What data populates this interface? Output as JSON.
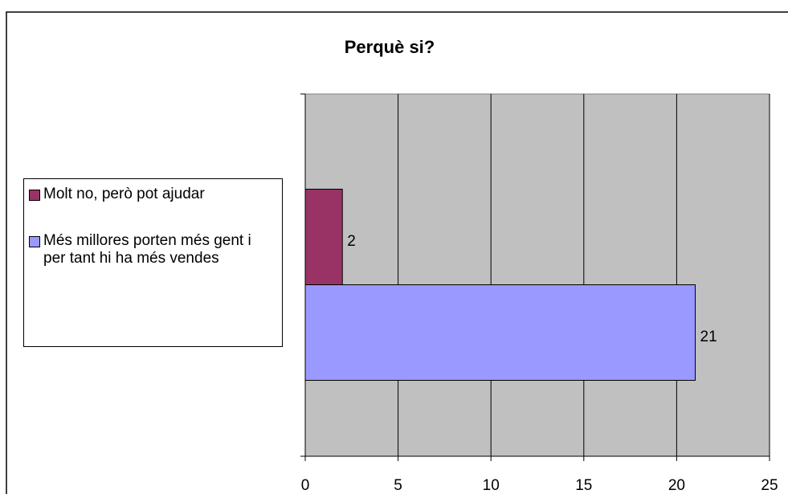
{
  "chart_data": {
    "type": "bar",
    "orientation": "horizontal",
    "title": "Perquè si?",
    "categories": [
      null
    ],
    "series": [
      {
        "name": "Molt no, però pot ajudar",
        "color": "#993366",
        "values": [
          2
        ]
      },
      {
        "name": "Més millores porten més gent i per tant hi ha més vendes",
        "color": "#9999ff",
        "values": [
          21
        ]
      }
    ],
    "xlim": [
      0,
      25
    ],
    "xticks": [
      0,
      5,
      10,
      15,
      20,
      25
    ],
    "grid": true,
    "legend": "left"
  }
}
